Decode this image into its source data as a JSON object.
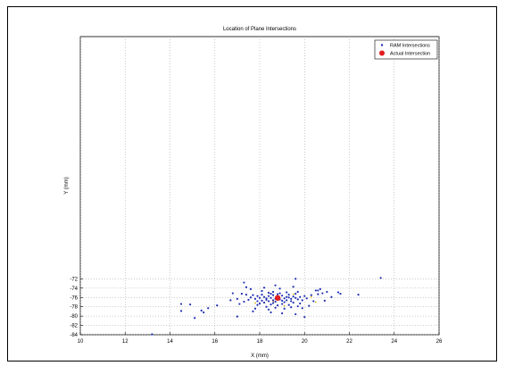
{
  "chart_data": {
    "type": "scatter",
    "title": "Location of Plane Intersections",
    "xlabel": "X (mm)",
    "ylabel": "Y (mm)",
    "xlim": [
      10,
      26
    ],
    "ylim": [
      -84,
      -20
    ],
    "xticks": [
      10,
      12,
      14,
      16,
      18,
      20,
      22,
      24,
      26
    ],
    "yticks": [
      -72,
      -74,
      -76,
      -78,
      -80,
      -82,
      -84
    ],
    "xtick_labels": [
      "10",
      "12",
      "14",
      "16",
      "18",
      "20",
      "22",
      "24",
      "26"
    ],
    "ytick_labels": [
      "-72",
      "-74",
      "-76",
      "-78",
      "-80",
      "-82",
      "-84"
    ],
    "grid": true,
    "legend_position": "top-right",
    "series": [
      {
        "name": "RAM Intersections",
        "color": "#1f2fb3",
        "marker": "dot",
        "points": [
          [
            18.1,
            -75.4
          ],
          [
            18.4,
            -75.7
          ],
          [
            18.6,
            -75.5
          ],
          [
            18.8,
            -75.8
          ],
          [
            19.0,
            -75.6
          ],
          [
            19.2,
            -75.9
          ],
          [
            18.5,
            -76.1
          ],
          [
            18.7,
            -76.3
          ],
          [
            19.1,
            -76.2
          ],
          [
            19.3,
            -76.0
          ],
          [
            18.3,
            -76.2
          ],
          [
            18.9,
            -76.4
          ],
          [
            19.4,
            -76.3
          ],
          [
            18.2,
            -75.9
          ],
          [
            18.6,
            -76.6
          ],
          [
            19.0,
            -76.7
          ],
          [
            19.5,
            -75.8
          ],
          [
            18.0,
            -76.1
          ],
          [
            18.4,
            -76.8
          ],
          [
            19.2,
            -76.6
          ],
          [
            18.8,
            -75.3
          ],
          [
            19.6,
            -76.1
          ],
          [
            17.9,
            -75.7
          ],
          [
            18.5,
            -75.2
          ],
          [
            19.3,
            -75.4
          ],
          [
            18.7,
            -76.9
          ],
          [
            19.1,
            -77.0
          ],
          [
            18.3,
            -76.5
          ],
          [
            19.7,
            -76.4
          ],
          [
            18.1,
            -76.7
          ],
          [
            18.6,
            -77.2
          ],
          [
            19.4,
            -76.8
          ],
          [
            17.8,
            -76.3
          ],
          [
            18.9,
            -75.1
          ],
          [
            19.8,
            -75.9
          ],
          [
            18.2,
            -77.1
          ],
          [
            19.0,
            -77.4
          ],
          [
            18.5,
            -77.5
          ],
          [
            19.5,
            -77.1
          ],
          [
            17.7,
            -75.5
          ],
          [
            18.4,
            -75.0
          ],
          [
            19.9,
            -76.6
          ],
          [
            18.8,
            -77.7
          ],
          [
            17.6,
            -76.0
          ],
          [
            20.0,
            -75.7
          ],
          [
            18.0,
            -77.3
          ],
          [
            19.3,
            -77.6
          ],
          [
            18.6,
            -74.8
          ],
          [
            19.6,
            -75.2
          ],
          [
            17.5,
            -76.5
          ],
          [
            20.1,
            -76.2
          ],
          [
            18.3,
            -78.0
          ],
          [
            19.2,
            -74.9
          ],
          [
            17.9,
            -77.6
          ],
          [
            19.8,
            -77.3
          ],
          [
            20.3,
            -75.5
          ],
          [
            17.4,
            -75.4
          ],
          [
            18.7,
            -78.2
          ],
          [
            19.1,
            -78.4
          ],
          [
            20.4,
            -76.8
          ],
          [
            17.3,
            -76.9
          ],
          [
            18.1,
            -74.6
          ],
          [
            19.7,
            -74.8
          ],
          [
            20.6,
            -75.3
          ],
          [
            17.2,
            -75.2
          ],
          [
            18.4,
            -78.6
          ],
          [
            19.4,
            -78.1
          ],
          [
            20.8,
            -75.1
          ],
          [
            17.1,
            -77.4
          ],
          [
            21.0,
            -74.8
          ],
          [
            17.6,
            -74.2
          ],
          [
            18.9,
            -74.1
          ],
          [
            19.9,
            -78.3
          ],
          [
            20.5,
            -74.5
          ],
          [
            17.0,
            -76.3
          ],
          [
            21.2,
            -75.9
          ],
          [
            17.8,
            -78.4
          ],
          [
            18.2,
            -73.9
          ],
          [
            20.2,
            -77.8
          ],
          [
            21.5,
            -74.9
          ],
          [
            16.8,
            -75.1
          ],
          [
            19.5,
            -73.7
          ],
          [
            20.9,
            -76.7
          ],
          [
            17.4,
            -73.8
          ],
          [
            18.5,
            -79.2
          ],
          [
            19.0,
            -79.4
          ],
          [
            20.7,
            -74.2
          ],
          [
            21.6,
            -75.2
          ],
          [
            16.7,
            -76.6
          ],
          [
            18.7,
            -73.4
          ],
          [
            22.4,
            -75.4
          ],
          [
            17.7,
            -79.0
          ],
          [
            19.6,
            -79.6
          ],
          [
            20.0,
            -80.2
          ],
          [
            16.1,
            -77.7
          ],
          [
            15.7,
            -78.3
          ],
          [
            15.4,
            -78.8
          ],
          [
            14.5,
            -77.4
          ],
          [
            14.9,
            -77.5
          ],
          [
            14.5,
            -78.9
          ],
          [
            15.5,
            -79.2
          ],
          [
            15.1,
            -80.4
          ],
          [
            17.0,
            -80.1
          ],
          [
            17.3,
            -72.8
          ],
          [
            19.6,
            -72.0
          ],
          [
            23.4,
            -71.8
          ],
          [
            13.2,
            -83.9
          ],
          [
            20.6,
            -74.5
          ],
          [
            17.9,
            -76.8
          ],
          [
            19.7,
            -77.9
          ]
        ]
      },
      {
        "name": "Actual Intersection",
        "color": "#e21c1c",
        "marker": "large-dot",
        "points": [
          [
            18.8,
            -76.1
          ]
        ]
      }
    ],
    "accent_points": [
      [
        18.6,
        -76.8
      ],
      [
        19.5,
        -75.3
      ],
      [
        18.4,
        -74.9
      ],
      [
        20.3,
        -75.9
      ],
      [
        17.8,
        -77.2
      ],
      [
        19.1,
        -77.8
      ],
      [
        20.5,
        -77.0
      ]
    ]
  }
}
